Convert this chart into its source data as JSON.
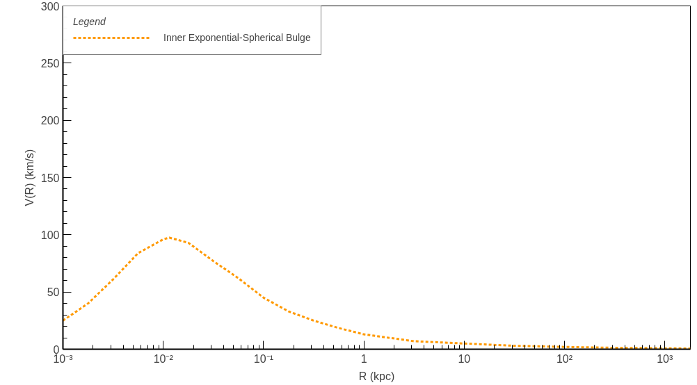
{
  "chart_data": {
    "type": "line",
    "xlabel": "R (kpc)",
    "ylabel": "V(R) (km/s)",
    "legend_title": "Legend",
    "log": "x",
    "x": [
      0.001,
      0.00178,
      0.00316,
      0.00562,
      0.01,
      0.0115,
      0.0178,
      0.0316,
      0.0562,
      0.1,
      0.178,
      0.316,
      0.562,
      1,
      3.16,
      10,
      31.6,
      100,
      316,
      1000,
      1800
    ],
    "series": [
      {
        "name": "Inner Exponential-Spherical Bulge",
        "color": "#ff9900",
        "values": [
          25,
          40,
          61,
          84,
          96,
          97.5,
          93,
          77,
          62,
          45,
          33,
          25,
          18.5,
          13,
          7,
          5,
          3,
          2,
          1.2,
          0.8,
          0.6
        ]
      }
    ],
    "xlim": [
      0.001,
      1800
    ],
    "ylim": [
      0,
      300
    ],
    "xticks": [
      {
        "value": 0.001,
        "label": "10⁻³"
      },
      {
        "value": 0.01,
        "label": "10⁻²"
      },
      {
        "value": 0.1,
        "label": "10⁻¹"
      },
      1,
      10,
      {
        "value": 100,
        "label": "10²"
      },
      {
        "value": 1000,
        "label": "10³"
      }
    ],
    "yticks": [
      0,
      50,
      100,
      150,
      200,
      250,
      300
    ],
    "line_style": "dashed",
    "grid": false,
    "legend": "top left",
    "marker": "none"
  }
}
